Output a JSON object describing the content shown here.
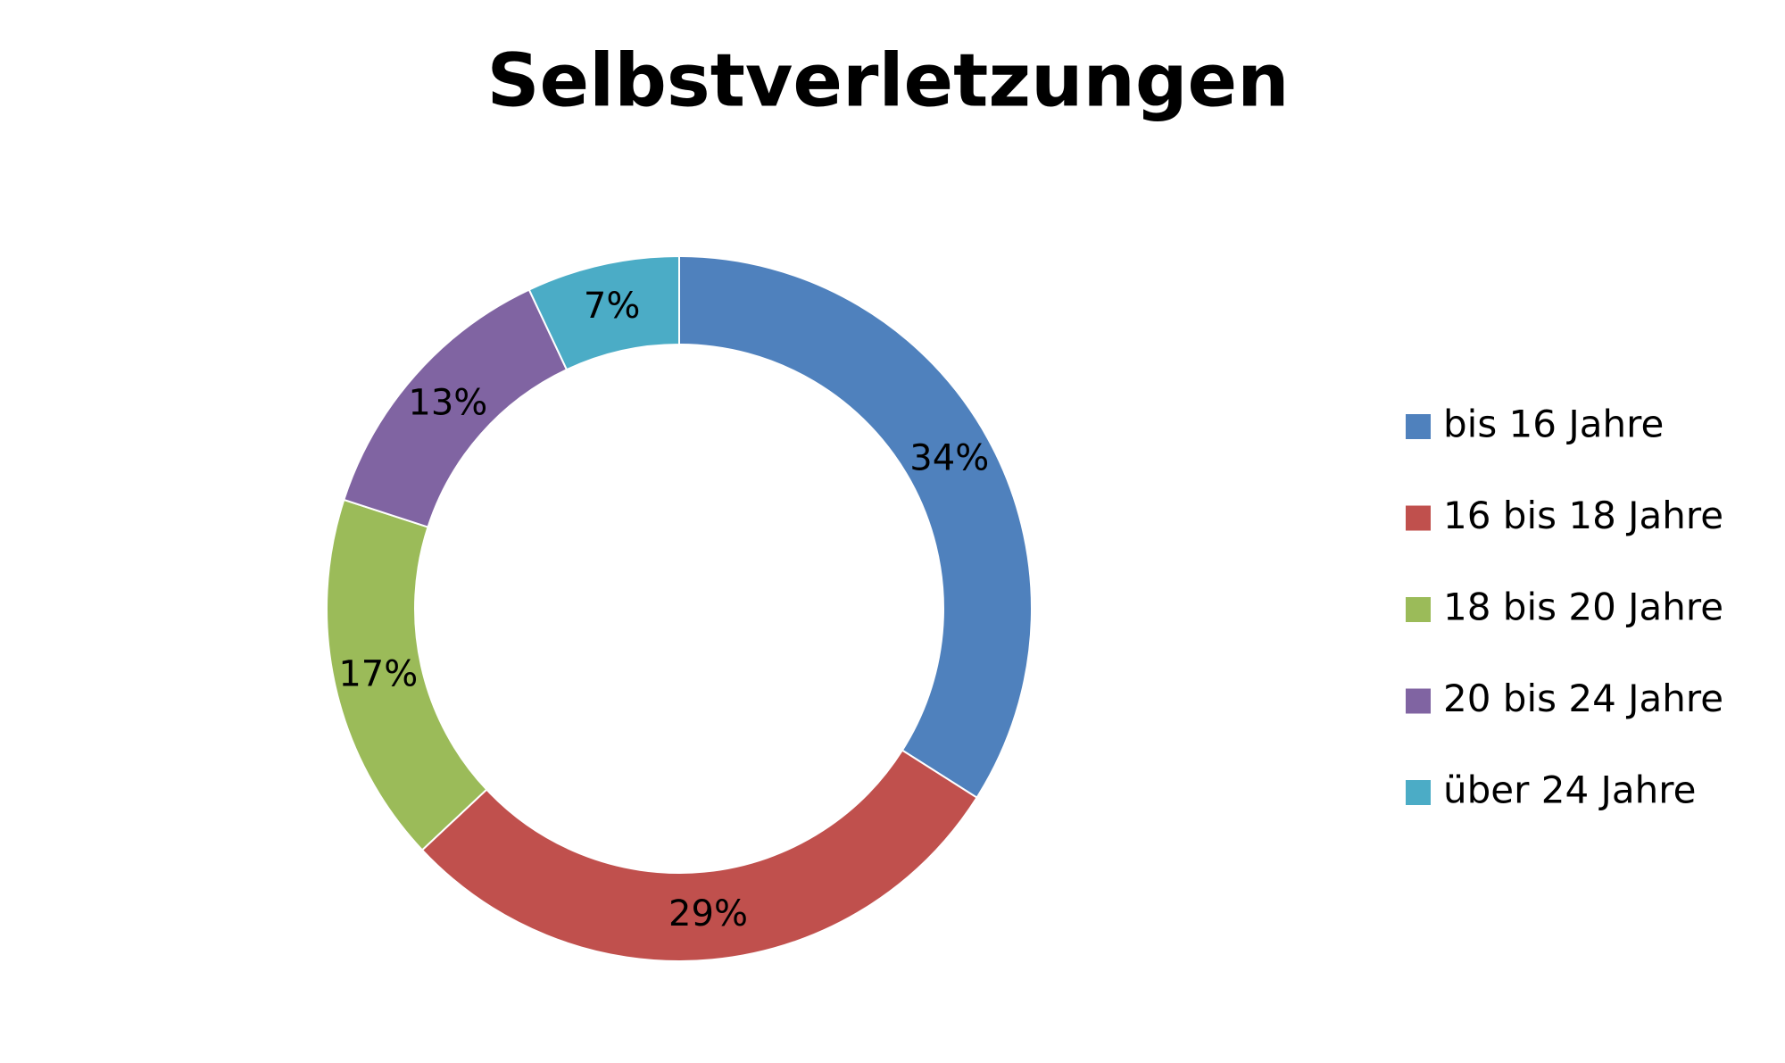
{
  "chart_data": {
    "type": "donut",
    "title": "Selbstverletzungen",
    "categories": [
      "bis 16 Jahre",
      "16 bis 18 Jahre",
      "18 bis 20 Jahre",
      "20 bis 24 Jahre",
      "über 24 Jahre"
    ],
    "values": [
      34,
      29,
      17,
      13,
      7
    ],
    "value_labels": [
      "34%",
      "29%",
      "17%",
      "13%",
      "7%"
    ],
    "colors": [
      "#4f81bd",
      "#c0504d",
      "#9bbb59",
      "#8064a2",
      "#4bacc6"
    ],
    "legend": "right"
  }
}
